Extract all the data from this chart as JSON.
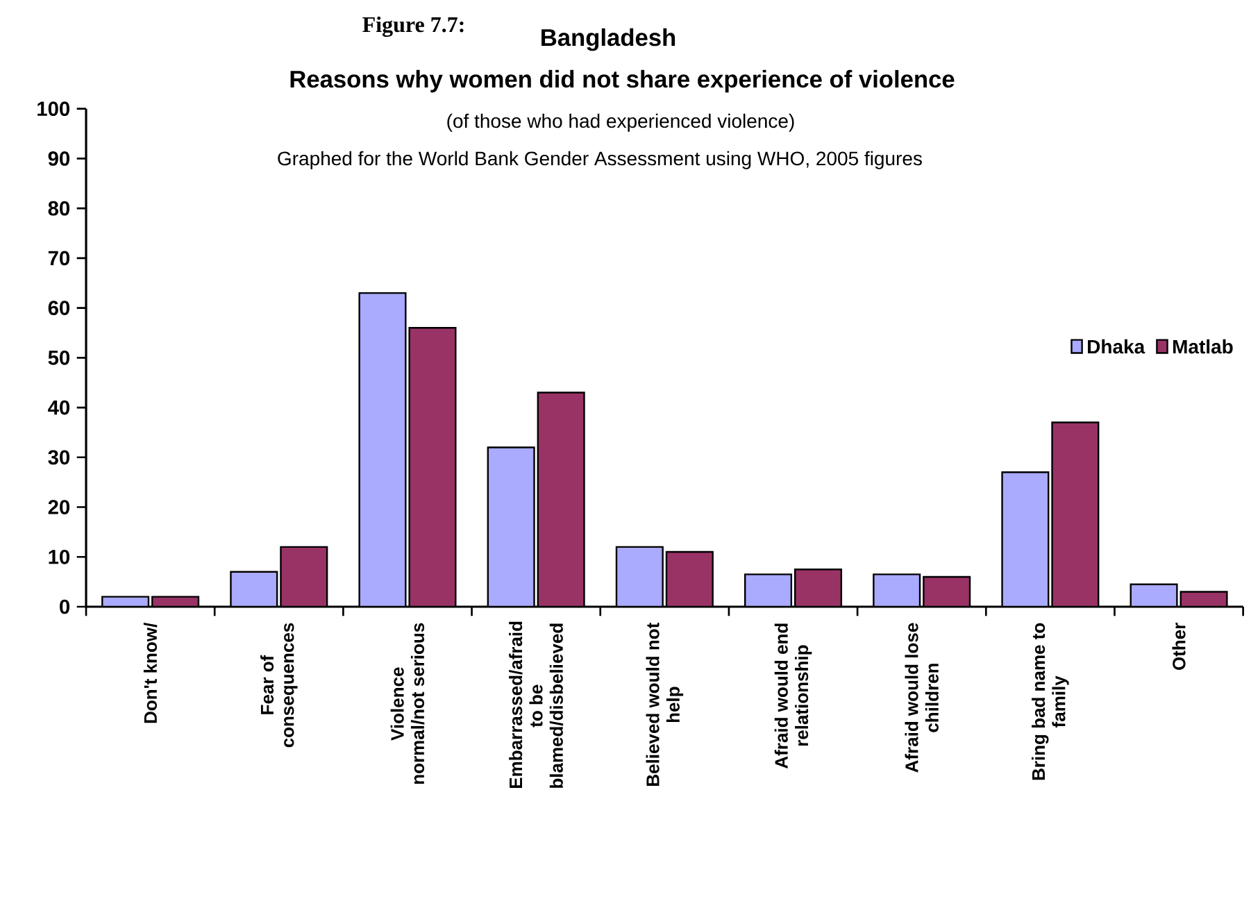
{
  "chart_data": {
    "type": "bar",
    "title": "Bangladesh",
    "subtitle": "Reasons why women did not share experience of violence",
    "annotations": [
      "Figure 7.7:",
      "(of those who had experienced violence)",
      "Graphed for the World Bank Gender Assessment using WHO, 2005 figures"
    ],
    "categories": [
      "Don't know/",
      "Fear of consequences",
      "Violence normal/not serious",
      "Embarrassed/afraid to be blamed/disbelieved",
      "Believed would not help",
      "Afraid would end relationship",
      "Afraid would lose children",
      "Bring bad name to family",
      "Other"
    ],
    "series": [
      {
        "name": "Dhaka",
        "color": "#aaaaff",
        "values": [
          2,
          7,
          63,
          32,
          12,
          6.5,
          6.5,
          27,
          4.5
        ]
      },
      {
        "name": "Matlab",
        "color": "#993366",
        "values": [
          2,
          12,
          56,
          43,
          11,
          7.5,
          6,
          37,
          3
        ]
      }
    ],
    "ylim": [
      0,
      100
    ],
    "yticks": [
      0,
      10,
      20,
      30,
      40,
      50,
      60,
      70,
      80,
      90,
      100
    ],
    "grid": false,
    "legend": "right"
  }
}
